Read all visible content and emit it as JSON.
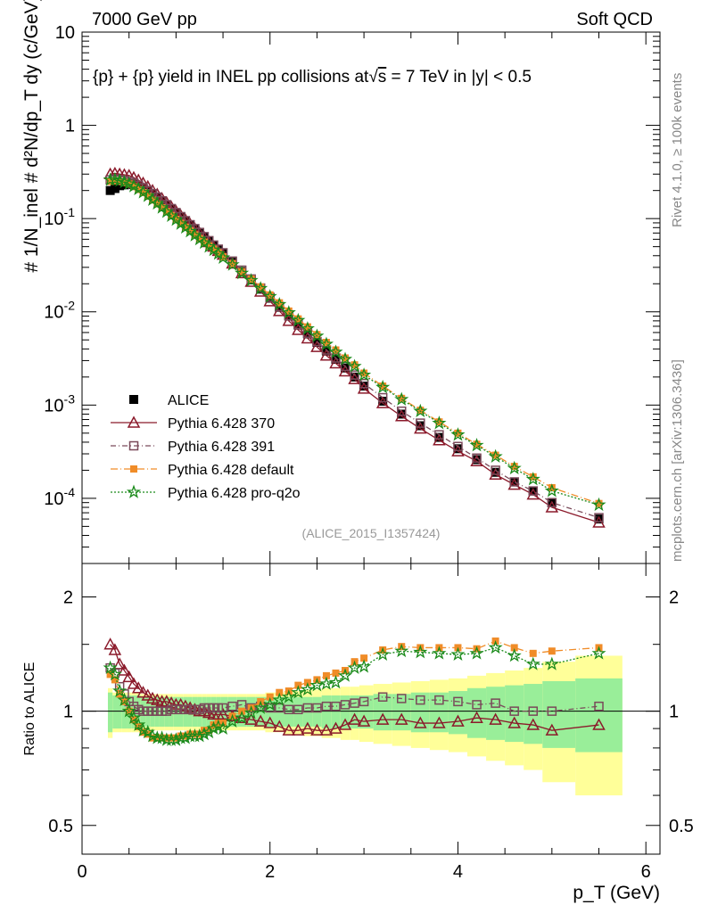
{
  "header": {
    "left_title": "7000 GeV pp",
    "right_title": "Soft QCD",
    "plot_title_pre": "{p} + {p} yield in INEL pp collisions at",
    "plot_title_sqrt": "s",
    "plot_title_post": " =  7 TeV in |y| < 0.5",
    "analysis_ref": "(ALICE_2015_I1357424)"
  },
  "side_labels": {
    "rivet": "Rivet 4.1.0, ≥ 100k events",
    "mcplots": "mcplots.cern.ch [arXiv:1306.3436]"
  },
  "axes": {
    "ylabel_main": "#  1/N_inel  # d²N/dp_T dy  (c/GeV)",
    "ylabel_ratio": "Ratio to ALICE",
    "xlabel": "p_T (GeV)",
    "x_ticks": [
      "0",
      "2",
      "4",
      "6"
    ],
    "y_ticks_main": [
      "10^-4",
      "10^-3",
      "10^-2",
      "10^-1",
      "1",
      "10"
    ],
    "y_ticks_ratio": [
      "0.5",
      "1",
      "2"
    ]
  },
  "legend": [
    {
      "label": "ALICE",
      "color": "#000000",
      "marker": "square-filled"
    },
    {
      "label": "Pythia 6.428 370",
      "color": "#8b1a2b",
      "marker": "triangle-open"
    },
    {
      "label": "Pythia 6.428 391",
      "color": "#7a4a5a",
      "marker": "square-open"
    },
    {
      "label": "Pythia 6.428 default",
      "color": "#f08c28",
      "marker": "square-filled-small"
    },
    {
      "label": "Pythia 6.428 pro-q2o",
      "color": "#1a8a1a",
      "marker": "star-open"
    }
  ],
  "chart_data": [
    {
      "type": "scatter",
      "title": "{p} + {p} yield in INEL pp collisions at √s = 7 TeV in |y| < 0.5",
      "xlabel": "p_T (GeV)",
      "ylabel": "1/N_inel d²N/dp_T dy (c/GeV)",
      "xlim": [
        0,
        6.15
      ],
      "ylim": [
        2e-05,
        10
      ],
      "yscale": "log",
      "x": [
        0.3,
        0.35,
        0.4,
        0.45,
        0.5,
        0.55,
        0.6,
        0.65,
        0.7,
        0.75,
        0.8,
        0.85,
        0.9,
        0.95,
        1.0,
        1.05,
        1.1,
        1.15,
        1.2,
        1.25,
        1.3,
        1.35,
        1.4,
        1.45,
        1.5,
        1.6,
        1.7,
        1.8,
        1.9,
        2.0,
        2.1,
        2.2,
        2.3,
        2.4,
        2.5,
        2.6,
        2.7,
        2.8,
        2.9,
        3.0,
        3.2,
        3.4,
        3.6,
        3.8,
        4.0,
        4.2,
        4.4,
        4.6,
        4.8,
        5.0,
        5.5
      ],
      "series": [
        {
          "name": "ALICE",
          "values": [
            0.2,
            0.21,
            0.225,
            0.23,
            0.235,
            0.232,
            0.225,
            0.215,
            0.2,
            0.185,
            0.17,
            0.155,
            0.14,
            0.127,
            0.115,
            0.104,
            0.094,
            0.085,
            0.077,
            0.07,
            0.063,
            0.057,
            0.051,
            0.046,
            0.042,
            0.034,
            0.027,
            0.022,
            0.0175,
            0.014,
            0.0112,
            0.009,
            0.0072,
            0.0058,
            0.0047,
            0.0038,
            0.0031,
            0.0025,
            0.002,
            0.0016,
            0.0011,
            0.0008,
            0.0006,
            0.00045,
            0.00034,
            0.00026,
            0.00019,
            0.00015,
            0.00012,
            9e-05,
            6e-05
          ]
        },
        {
          "name": "Pythia 6.428 370",
          "values": [
            0.3,
            0.305,
            0.3,
            0.295,
            0.29,
            0.275,
            0.258,
            0.24,
            0.22,
            0.2,
            0.182,
            0.164,
            0.148,
            0.133,
            0.12,
            0.108,
            0.097,
            0.087,
            0.078,
            0.07,
            0.063,
            0.056,
            0.05,
            0.045,
            0.041,
            0.033,
            0.026,
            0.021,
            0.0165,
            0.013,
            0.0102,
            0.008,
            0.0064,
            0.0052,
            0.0042,
            0.0034,
            0.0028,
            0.0023,
            0.0019,
            0.0015,
            0.00105,
            0.00076,
            0.00056,
            0.00042,
            0.00032,
            0.00025,
            0.00018,
            0.00014,
            0.00011,
            8e-05,
            5.5e-05
          ]
        },
        {
          "name": "Pythia 6.428 391",
          "values": [
            0.26,
            0.265,
            0.26,
            0.255,
            0.25,
            0.24,
            0.228,
            0.214,
            0.2,
            0.185,
            0.17,
            0.155,
            0.141,
            0.128,
            0.116,
            0.105,
            0.095,
            0.086,
            0.078,
            0.071,
            0.064,
            0.058,
            0.052,
            0.047,
            0.043,
            0.035,
            0.028,
            0.0225,
            0.018,
            0.0143,
            0.0114,
            0.0091,
            0.0073,
            0.0059,
            0.0048,
            0.0039,
            0.0032,
            0.0026,
            0.0021,
            0.0017,
            0.0012,
            0.00086,
            0.00064,
            0.00048,
            0.00036,
            0.00027,
            0.0002,
            0.00015,
            0.00012,
            9e-05,
            6.2e-05
          ]
        },
        {
          "name": "Pythia 6.428 default",
          "values": [
            0.25,
            0.255,
            0.25,
            0.243,
            0.235,
            0.22,
            0.205,
            0.19,
            0.174,
            0.158,
            0.144,
            0.131,
            0.119,
            0.108,
            0.098,
            0.089,
            0.081,
            0.074,
            0.067,
            0.061,
            0.056,
            0.051,
            0.047,
            0.043,
            0.039,
            0.033,
            0.027,
            0.0225,
            0.0185,
            0.0152,
            0.0125,
            0.0102,
            0.0084,
            0.0069,
            0.0057,
            0.0047,
            0.0039,
            0.0032,
            0.0027,
            0.0022,
            0.0016,
            0.00118,
            0.00088,
            0.00066,
            0.0005,
            0.00038,
            0.00029,
            0.00022,
            0.00017,
            0.00013,
            8.8e-05
          ]
        },
        {
          "name": "Pythia 6.428 pro-q2o",
          "values": [
            0.26,
            0.262,
            0.255,
            0.246,
            0.236,
            0.222,
            0.207,
            0.191,
            0.175,
            0.159,
            0.145,
            0.131,
            0.118,
            0.107,
            0.097,
            0.088,
            0.08,
            0.073,
            0.066,
            0.06,
            0.055,
            0.05,
            0.046,
            0.042,
            0.038,
            0.032,
            0.026,
            0.0217,
            0.0178,
            0.0146,
            0.012,
            0.0098,
            0.0081,
            0.0066,
            0.0055,
            0.0045,
            0.0037,
            0.0031,
            0.0026,
            0.0021,
            0.00155,
            0.00115,
            0.00086,
            0.00064,
            0.00048,
            0.00037,
            0.00028,
            0.00021,
            0.00016,
            0.00012,
            8.5e-05
          ]
        }
      ]
    },
    {
      "type": "scatter",
      "xlabel": "p_T (GeV)",
      "ylabel": "Ratio to ALICE",
      "xlim": [
        0,
        6.15
      ],
      "ylim": [
        0.42,
        2.45
      ],
      "yscale": "log",
      "x": [
        0.3,
        0.35,
        0.4,
        0.45,
        0.5,
        0.55,
        0.6,
        0.65,
        0.7,
        0.75,
        0.8,
        0.85,
        0.9,
        0.95,
        1.0,
        1.05,
        1.1,
        1.15,
        1.2,
        1.25,
        1.3,
        1.35,
        1.4,
        1.45,
        1.5,
        1.6,
        1.7,
        1.8,
        1.9,
        2.0,
        2.1,
        2.2,
        2.3,
        2.4,
        2.5,
        2.6,
        2.7,
        2.8,
        2.9,
        3.0,
        3.2,
        3.4,
        3.6,
        3.8,
        4.0,
        4.2,
        4.4,
        4.6,
        4.8,
        5.0,
        5.5
      ],
      "series": [
        {
          "name": "Pythia 6.428 370",
          "values": [
            1.5,
            1.45,
            1.33,
            1.28,
            1.23,
            1.18,
            1.15,
            1.12,
            1.1,
            1.08,
            1.07,
            1.06,
            1.06,
            1.05,
            1.04,
            1.04,
            1.03,
            1.02,
            1.01,
            1.0,
            1.0,
            0.99,
            0.98,
            0.98,
            0.98,
            0.97,
            0.96,
            0.95,
            0.94,
            0.93,
            0.91,
            0.89,
            0.89,
            0.9,
            0.89,
            0.89,
            0.9,
            0.92,
            0.95,
            0.94,
            0.95,
            0.95,
            0.93,
            0.93,
            0.94,
            0.96,
            0.95,
            0.93,
            0.92,
            0.89,
            0.92
          ]
        },
        {
          "name": "Pythia 6.428 391",
          "values": [
            1.3,
            1.26,
            1.16,
            1.11,
            1.06,
            1.03,
            1.01,
            1.0,
            1.0,
            1.0,
            1.0,
            1.0,
            1.0,
            1.01,
            1.01,
            1.01,
            1.01,
            1.01,
            1.01,
            1.01,
            1.02,
            1.02,
            1.02,
            1.02,
            1.02,
            1.03,
            1.04,
            1.02,
            1.03,
            1.02,
            1.02,
            1.01,
            1.01,
            1.02,
            1.02,
            1.03,
            1.03,
            1.04,
            1.05,
            1.06,
            1.09,
            1.08,
            1.07,
            1.07,
            1.06,
            1.04,
            1.05,
            1.0,
            1.0,
            1.0,
            1.03
          ]
        },
        {
          "name": "Pythia 6.428 default",
          "values": [
            1.25,
            1.21,
            1.11,
            1.06,
            1.0,
            0.95,
            0.91,
            0.88,
            0.87,
            0.85,
            0.85,
            0.85,
            0.85,
            0.85,
            0.85,
            0.86,
            0.86,
            0.87,
            0.87,
            0.87,
            0.89,
            0.89,
            0.92,
            0.93,
            0.93,
            0.97,
            1.0,
            1.02,
            1.06,
            1.09,
            1.12,
            1.13,
            1.17,
            1.19,
            1.21,
            1.24,
            1.26,
            1.28,
            1.35,
            1.38,
            1.45,
            1.48,
            1.47,
            1.47,
            1.47,
            1.46,
            1.53,
            1.47,
            1.42,
            1.44,
            1.47
          ]
        },
        {
          "name": "Pythia 6.428 pro-q2o",
          "values": [
            1.3,
            1.25,
            1.13,
            1.07,
            1.0,
            0.96,
            0.92,
            0.89,
            0.88,
            0.86,
            0.85,
            0.85,
            0.84,
            0.84,
            0.84,
            0.85,
            0.85,
            0.86,
            0.86,
            0.86,
            0.87,
            0.88,
            0.9,
            0.91,
            0.9,
            0.94,
            0.96,
            0.99,
            1.02,
            1.04,
            1.07,
            1.09,
            1.12,
            1.14,
            1.17,
            1.18,
            1.19,
            1.24,
            1.3,
            1.31,
            1.41,
            1.44,
            1.43,
            1.42,
            1.41,
            1.42,
            1.47,
            1.4,
            1.33,
            1.33,
            1.42
          ]
        }
      ],
      "band_inner": [
        0.12,
        0.1,
        0.1,
        0.1,
        0.1,
        0.1,
        0.1,
        0.09,
        0.09,
        0.09,
        0.09,
        0.09,
        0.09,
        0.09,
        0.09,
        0.09,
        0.09,
        0.09,
        0.09,
        0.09,
        0.09,
        0.09,
        0.09,
        0.09,
        0.09,
        0.09,
        0.09,
        0.09,
        0.09,
        0.09,
        0.09,
        0.09,
        0.09,
        0.09,
        0.09,
        0.1,
        0.1,
        0.1,
        0.1,
        0.1,
        0.11,
        0.11,
        0.12,
        0.12,
        0.13,
        0.15,
        0.16,
        0.17,
        0.18,
        0.2,
        0.22
      ],
      "band_outer": [
        0.15,
        0.12,
        0.12,
        0.12,
        0.12,
        0.12,
        0.12,
        0.11,
        0.11,
        0.11,
        0.11,
        0.11,
        0.11,
        0.11,
        0.11,
        0.11,
        0.11,
        0.11,
        0.11,
        0.11,
        0.11,
        0.11,
        0.11,
        0.11,
        0.11,
        0.11,
        0.11,
        0.11,
        0.11,
        0.12,
        0.12,
        0.13,
        0.13,
        0.14,
        0.14,
        0.15,
        0.15,
        0.16,
        0.16,
        0.17,
        0.18,
        0.19,
        0.2,
        0.21,
        0.22,
        0.24,
        0.26,
        0.28,
        0.3,
        0.35,
        0.4
      ]
    }
  ]
}
